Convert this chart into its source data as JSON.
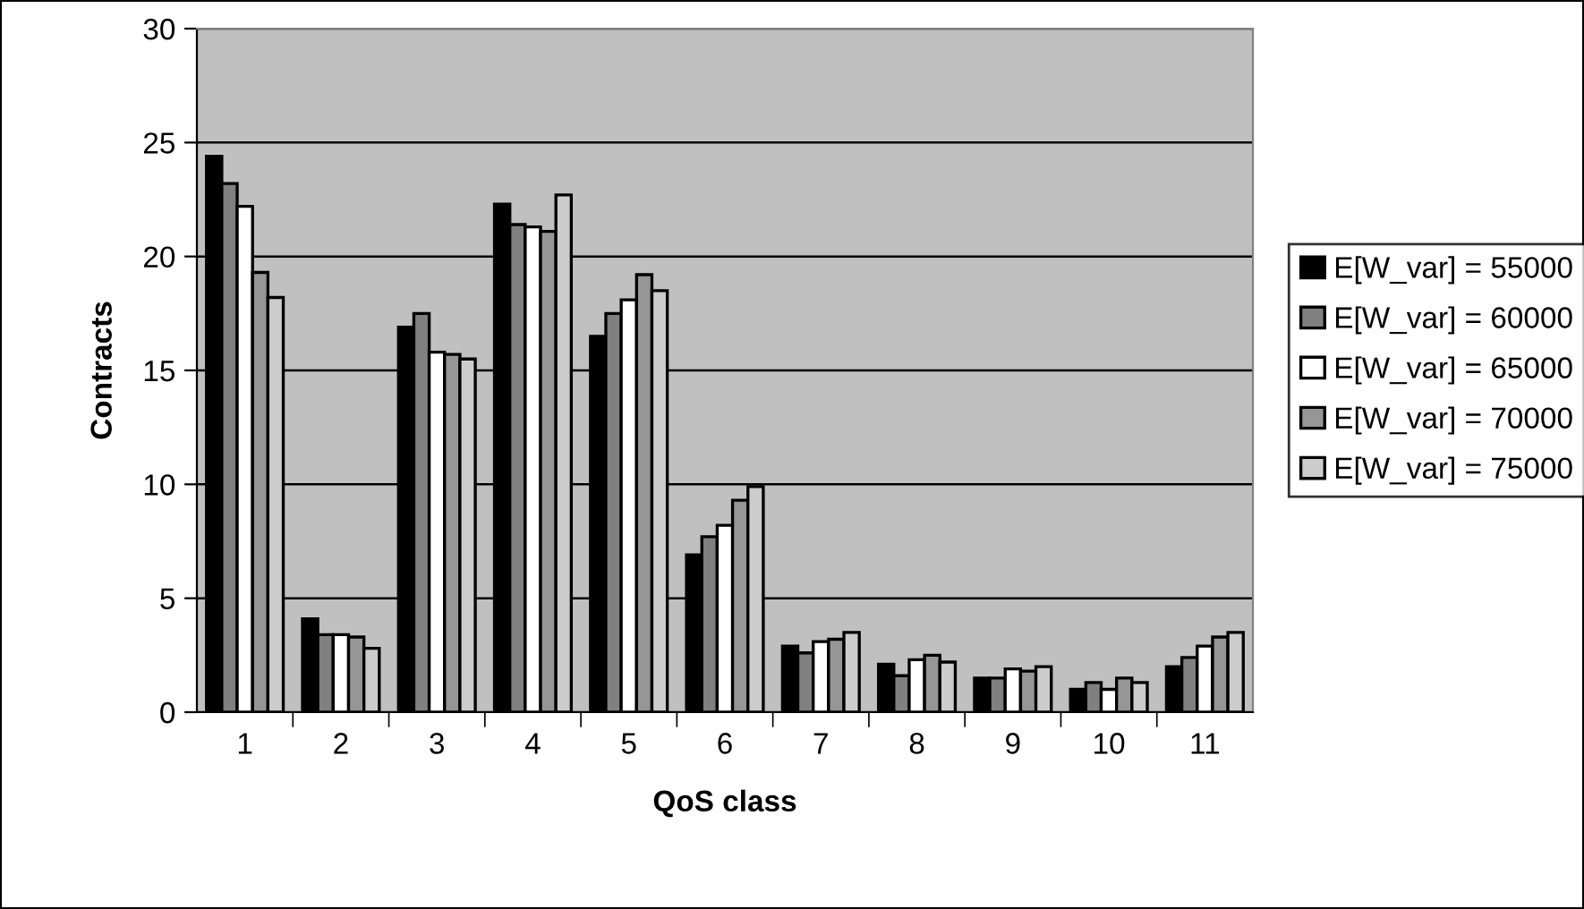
{
  "chart_data": {
    "type": "bar",
    "xlabel": "QoS class",
    "ylabel": "Contracts",
    "categories": [
      "1",
      "2",
      "3",
      "4",
      "5",
      "6",
      "7",
      "8",
      "9",
      "10",
      "11"
    ],
    "series": [
      {
        "name": "E[W_var] = 55000",
        "color": "#000000",
        "values": [
          24.4,
          4.1,
          16.9,
          22.3,
          16.5,
          6.9,
          2.9,
          2.1,
          1.5,
          1.0,
          2.0
        ]
      },
      {
        "name": "E[W_var] = 60000",
        "color": "#808080",
        "values": [
          23.2,
          3.4,
          17.5,
          21.4,
          17.5,
          7.7,
          2.6,
          1.6,
          1.5,
          1.3,
          2.4
        ]
      },
      {
        "name": "E[W_var] = 65000",
        "color": "#ffffff",
        "values": [
          22.2,
          3.4,
          15.8,
          21.3,
          18.1,
          8.2,
          3.1,
          2.3,
          1.9,
          1.0,
          2.9
        ]
      },
      {
        "name": "E[W_var] = 70000",
        "color": "#969696",
        "values": [
          19.3,
          3.3,
          15.7,
          21.1,
          19.2,
          9.3,
          3.2,
          2.5,
          1.8,
          1.5,
          3.3
        ]
      },
      {
        "name": "E[W_var] = 75000",
        "color": "#cccccc",
        "values": [
          18.2,
          2.8,
          15.5,
          22.7,
          18.5,
          9.9,
          3.5,
          2.2,
          2.0,
          1.3,
          3.5
        ]
      }
    ],
    "ylim": [
      0,
      30
    ],
    "yticks": [
      0,
      5,
      10,
      15,
      20,
      25,
      30
    ],
    "grid": "y",
    "legend": "right"
  }
}
